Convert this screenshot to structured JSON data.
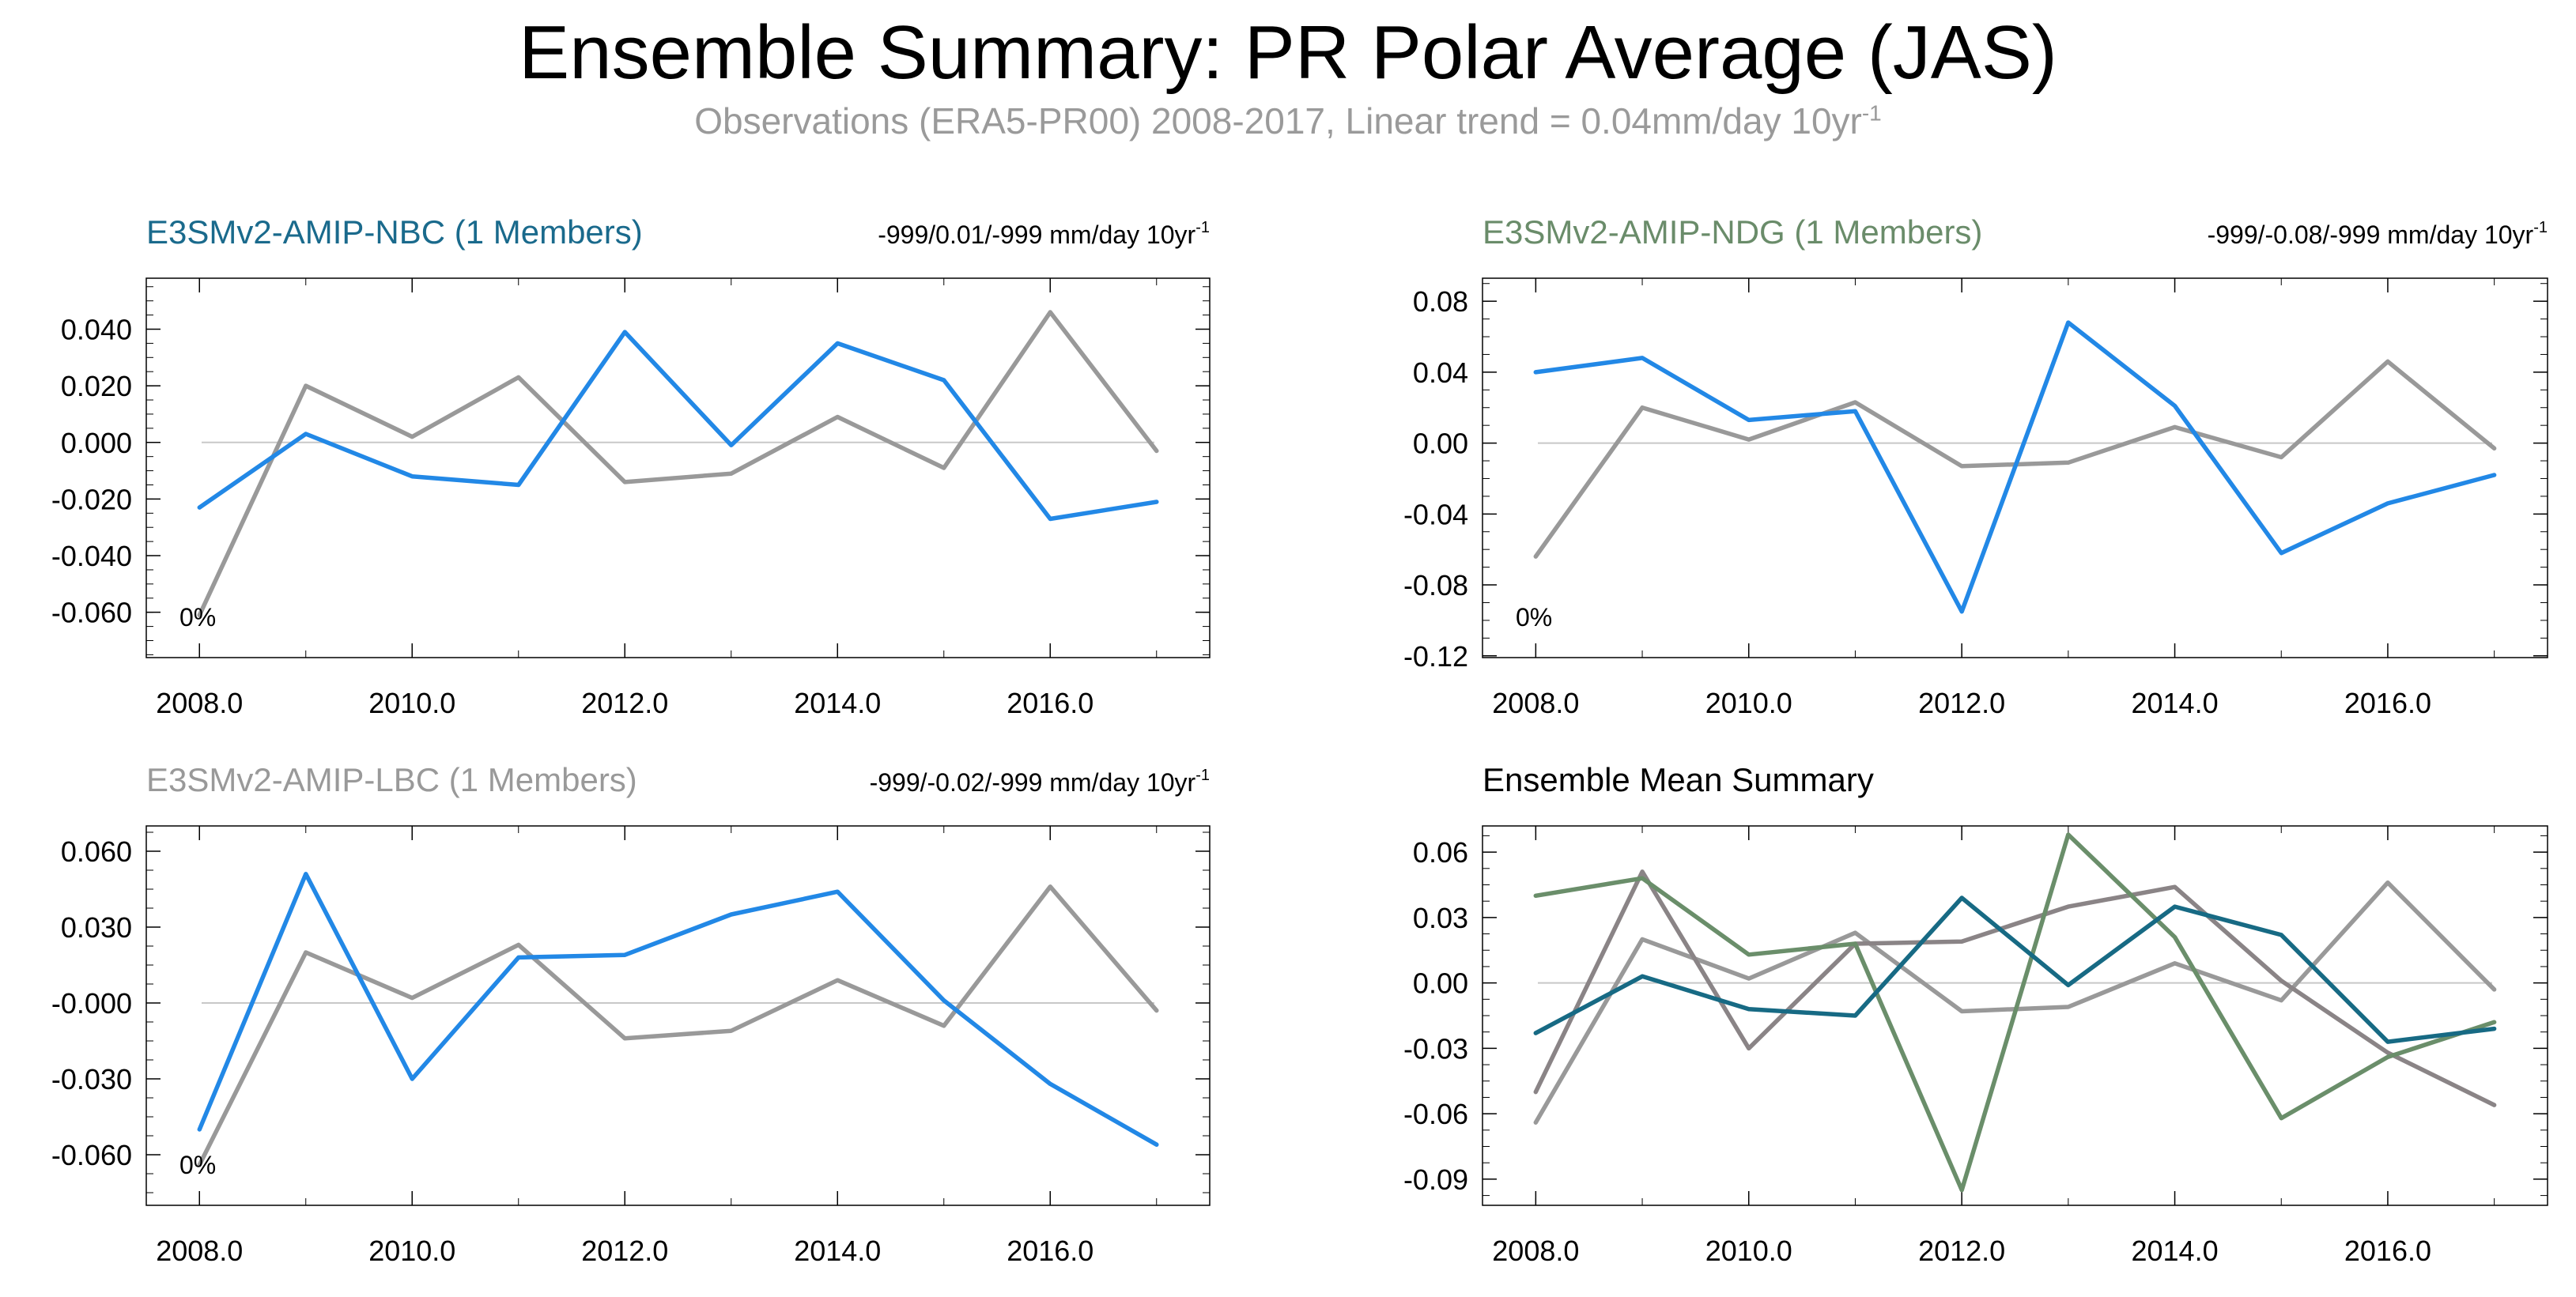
{
  "title": "Ensemble Summary: PR Polar Average (JAS)",
  "subtitle": "Observations (ERA5-PR00) 2008-2017, Linear trend = 0.04mm/day 10yr",
  "subtitle_sup": "-1",
  "colors": {
    "obs": "#999999",
    "nbc": "#2288e6",
    "nbc_title": "#1a6a8c",
    "ndg_title": "#6a8c6a",
    "lbc_title": "#999999",
    "mean_nbc": "#176a84",
    "mean_ndg": "#6a8e6a",
    "mean_lbc": "#8a8486",
    "zero_line": "#c8c8c8"
  },
  "chart_data": [
    {
      "type": "line",
      "title": "E3SMv2-AMIP-NBC (1 Members)",
      "title_color_key": "nbc_title",
      "trend_label": "-999/0.01/-999 mm/day 10yr",
      "trend_sup": "-1",
      "corner_label": "0%",
      "x": [
        2008,
        2009,
        2010,
        2011,
        2012,
        2013,
        2014,
        2015,
        2016,
        2017
      ],
      "xticks": [
        2008,
        2010,
        2012,
        2014,
        2016
      ],
      "xtick_labels": [
        "2008.0",
        "2010.0",
        "2012.0",
        "2014.0",
        "2016.0"
      ],
      "xlim": [
        2007.5,
        2017.5
      ],
      "ylim": [
        -0.076,
        0.058
      ],
      "yticks": [
        0.04,
        0.02,
        0.0,
        -0.02,
        -0.04,
        -0.06
      ],
      "ytick_labels": [
        "0.040",
        "0.020",
        "0.000",
        "-0.020",
        "-0.040",
        "-0.060"
      ],
      "series": [
        {
          "color_key": "obs",
          "values": [
            -0.061,
            0.02,
            0.002,
            0.023,
            -0.014,
            -0.011,
            0.009,
            -0.009,
            0.046,
            -0.003
          ]
        },
        {
          "color_key": "nbc",
          "values": [
            -0.023,
            0.003,
            -0.012,
            -0.015,
            0.039,
            -0.001,
            0.035,
            0.022,
            -0.027,
            -0.021
          ]
        }
      ]
    },
    {
      "type": "line",
      "title": "E3SMv2-AMIP-NDG (1 Members)",
      "title_color_key": "ndg_title",
      "trend_label": "-999/-0.08/-999 mm/day 10yr",
      "trend_sup": "-1",
      "corner_label": "0%",
      "x": [
        2008,
        2009,
        2010,
        2011,
        2012,
        2013,
        2014,
        2015,
        2016,
        2017
      ],
      "xticks": [
        2008,
        2010,
        2012,
        2014,
        2016
      ],
      "xtick_labels": [
        "2008.0",
        "2010.0",
        "2012.0",
        "2014.0",
        "2016.0"
      ],
      "xlim": [
        2007.5,
        2017.5
      ],
      "ylim": [
        -0.121,
        0.093
      ],
      "yticks": [
        0.08,
        0.04,
        0.0,
        -0.04,
        -0.08,
        -0.12
      ],
      "ytick_labels": [
        "0.08",
        "0.04",
        "0.00",
        "-0.04",
        "-0.08",
        "-0.12"
      ],
      "series": [
        {
          "color_key": "obs",
          "values": [
            -0.064,
            0.02,
            0.002,
            0.023,
            -0.013,
            -0.011,
            0.009,
            -0.008,
            0.046,
            -0.003
          ]
        },
        {
          "color_key": "nbc",
          "values": [
            0.04,
            0.048,
            0.013,
            0.018,
            -0.095,
            0.068,
            0.021,
            -0.062,
            -0.034,
            -0.018
          ]
        }
      ]
    },
    {
      "type": "line",
      "title": "E3SMv2-AMIP-LBC (1 Members)",
      "title_color_key": "lbc_title",
      "trend_label": "-999/-0.02/-999 mm/day 10yr",
      "trend_sup": "-1",
      "corner_label": "0%",
      "x": [
        2008,
        2009,
        2010,
        2011,
        2012,
        2013,
        2014,
        2015,
        2016,
        2017
      ],
      "xticks": [
        2008,
        2010,
        2012,
        2014,
        2016
      ],
      "xtick_labels": [
        "2008.0",
        "2010.0",
        "2012.0",
        "2014.0",
        "2016.0"
      ],
      "xlim": [
        2007.5,
        2017.5
      ],
      "ylim": [
        -0.08,
        0.07
      ],
      "yticks": [
        0.06,
        0.03,
        0.0,
        -0.03,
        -0.06
      ],
      "ytick_labels": [
        "0.060",
        "0.030",
        "-0.000",
        "-0.030",
        "-0.060"
      ],
      "series": [
        {
          "color_key": "obs",
          "values": [
            -0.064,
            0.02,
            0.002,
            0.023,
            -0.014,
            -0.011,
            0.009,
            -0.009,
            0.046,
            -0.003
          ]
        },
        {
          "color_key": "nbc",
          "values": [
            -0.05,
            0.051,
            -0.03,
            0.018,
            0.019,
            0.035,
            0.044,
            0.001,
            -0.032,
            -0.056
          ]
        }
      ]
    },
    {
      "type": "line",
      "title": "Ensemble Mean Summary",
      "title_color_key": "",
      "trend_label": "",
      "trend_sup": "",
      "corner_label": "",
      "x": [
        2008,
        2009,
        2010,
        2011,
        2012,
        2013,
        2014,
        2015,
        2016,
        2017
      ],
      "xticks": [
        2008,
        2010,
        2012,
        2014,
        2016
      ],
      "xtick_labels": [
        "2008.0",
        "2010.0",
        "2012.0",
        "2014.0",
        "2016.0"
      ],
      "xlim": [
        2007.5,
        2017.5
      ],
      "ylim": [
        -0.102,
        0.072
      ],
      "yticks": [
        0.06,
        0.03,
        0.0,
        -0.03,
        -0.06,
        -0.09
      ],
      "ytick_labels": [
        "0.06",
        "0.03",
        "0.00",
        "-0.03",
        "-0.06",
        "-0.09"
      ],
      "series": [
        {
          "color_key": "obs",
          "values": [
            -0.064,
            0.02,
            0.002,
            0.023,
            -0.013,
            -0.011,
            0.009,
            -0.008,
            0.046,
            -0.003
          ]
        },
        {
          "color_key": "mean_lbc",
          "values": [
            -0.05,
            0.051,
            -0.03,
            0.018,
            0.019,
            0.035,
            0.044,
            0.001,
            -0.032,
            -0.056
          ]
        },
        {
          "color_key": "mean_ndg",
          "values": [
            0.04,
            0.048,
            0.013,
            0.018,
            -0.095,
            0.068,
            0.021,
            -0.062,
            -0.034,
            -0.018
          ]
        },
        {
          "color_key": "mean_nbc",
          "values": [
            -0.023,
            0.003,
            -0.012,
            -0.015,
            0.039,
            -0.001,
            0.035,
            0.022,
            -0.027,
            -0.021
          ]
        }
      ]
    }
  ]
}
